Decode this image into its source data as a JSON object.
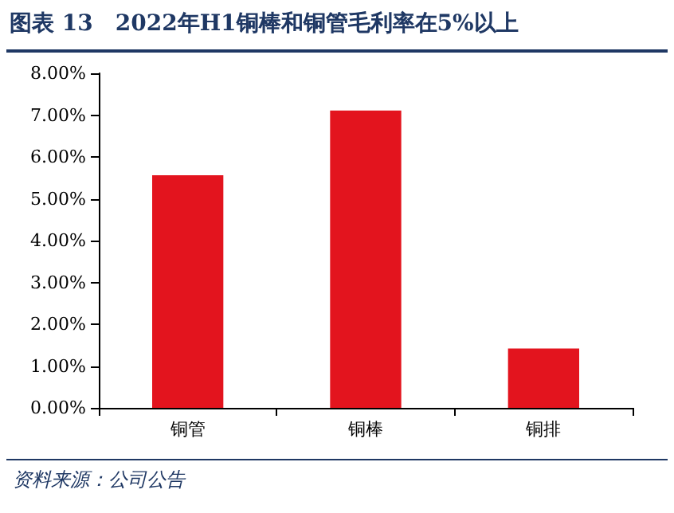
{
  "chart_data": {
    "type": "bar",
    "title": "图表 13　2022年H1铜棒和铜管毛利率在5%以上",
    "categories": [
      "铜管",
      "铜棒",
      "铜排"
    ],
    "values": [
      5.56,
      7.11,
      1.42
    ],
    "color": "#e3141e",
    "ylim": [
      0,
      8
    ],
    "yticks": [
      {
        "value": 0,
        "label": "0.00%"
      },
      {
        "value": 1,
        "label": "1.00%"
      },
      {
        "value": 2,
        "label": "2.00%"
      },
      {
        "value": 3,
        "label": "3.00%"
      },
      {
        "value": 4,
        "label": "4.00%"
      },
      {
        "value": 5,
        "label": "5.00%"
      },
      {
        "value": 6,
        "label": "6.00%"
      },
      {
        "value": 7,
        "label": "7.00%"
      },
      {
        "value": 8,
        "label": "8.00%"
      }
    ],
    "grid": false,
    "annotations": [
      "资料来源：公司公告"
    ]
  }
}
